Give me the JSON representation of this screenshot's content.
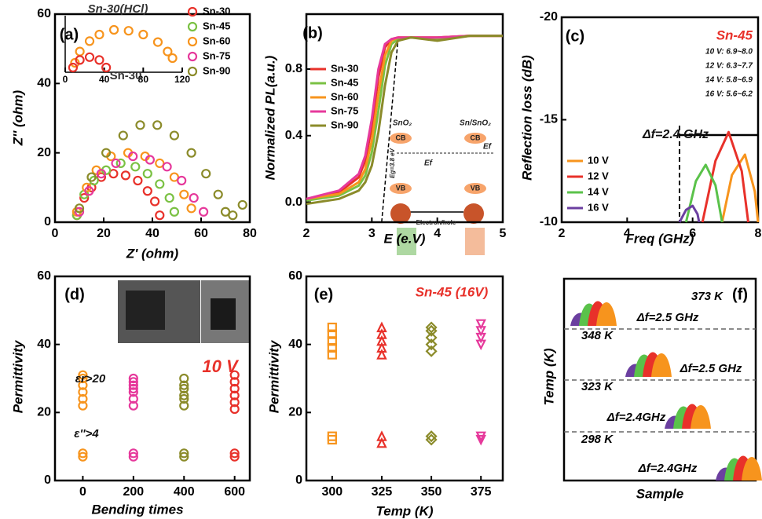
{
  "chart_data": [
    {
      "type": "scatter",
      "label": "(a)",
      "xlabel": "Z' (ohm)",
      "ylabel": "Z'' (ohm)",
      "xlim": [
        0,
        80
      ],
      "ylim": [
        0,
        60
      ],
      "xticks": [
        0,
        20,
        40,
        60,
        80
      ],
      "yticks": [
        0,
        20,
        40,
        60
      ],
      "series": [
        {
          "name": "Sn-30",
          "color": "#e8312a",
          "marker": "circle",
          "x": [
            9,
            12,
            15,
            19,
            24,
            29,
            34,
            38,
            41,
            43
          ],
          "values": [
            2,
            7,
            10,
            13,
            14,
            13.5,
            12,
            9,
            6,
            2
          ]
        },
        {
          "name": "Sn-45",
          "color": "#7ac143",
          "marker": "circle",
          "x": [
            9,
            12,
            16,
            21,
            27,
            33,
            38,
            43,
            47,
            49
          ],
          "values": [
            2,
            8,
            12,
            15,
            17,
            16,
            14,
            11,
            7,
            3
          ]
        },
        {
          "name": "Sn-60",
          "color": "#f7941d",
          "marker": "circle",
          "x": [
            9,
            13,
            17,
            23,
            30,
            37,
            43,
            49,
            53,
            56
          ],
          "values": [
            3,
            10,
            15,
            19,
            20,
            19,
            17,
            13,
            8,
            4
          ]
        },
        {
          "name": "Sn-75",
          "color": "#e6399b",
          "marker": "circle",
          "x": [
            10,
            14,
            19,
            25,
            32,
            39,
            46,
            52,
            57,
            61
          ],
          "values": [
            3,
            9,
            14,
            17,
            19,
            18,
            16,
            12,
            7,
            3
          ]
        },
        {
          "name": "Sn-90",
          "color": "#8b8b2a",
          "marker": "circle",
          "x": [
            10,
            15,
            21,
            28,
            35,
            42,
            49,
            56,
            62,
            67,
            70,
            73,
            77
          ],
          "values": [
            4,
            13,
            20,
            25,
            28,
            28,
            25,
            20,
            14,
            8,
            3,
            2,
            5
          ]
        }
      ]
    },
    {
      "type": "scatter",
      "annotations": [
        "Sn-30(HCl)",
        "Sn-30"
      ],
      "xlim": [
        0,
        120
      ],
      "ylim": [
        0,
        60
      ],
      "xticks": [
        0,
        40,
        80,
        120
      ],
      "series": [
        {
          "color": "#f7941d",
          "marker": "circle",
          "x": [
            10,
            15,
            25,
            35,
            50,
            65,
            80,
            95,
            105,
            110
          ],
          "values": [
            10,
            22,
            33,
            40,
            45,
            44,
            40,
            32,
            22,
            15
          ]
        },
        {
          "color": "#e8312a",
          "marker": "circle",
          "x": [
            8,
            15,
            25,
            35,
            42
          ],
          "values": [
            5,
            13,
            16,
            13,
            5
          ]
        }
      ]
    },
    {
      "type": "line",
      "label": "(b)",
      "xlabel": "E (e.V)",
      "ylabel": "Normalized PL(a.u.)",
      "xlim": [
        2,
        5
      ],
      "ylim": [
        -0.12,
        1.13
      ],
      "xticks": [
        2,
        3,
        4,
        5
      ],
      "yticks": [
        {
          "value": 0,
          "label": "0.0"
        },
        0.4,
        0.8
      ],
      "annotations": [
        "SnO₂",
        "Sn/SnO₂",
        "CB",
        "CB",
        "VB",
        "VB",
        "Eg=3.8 eV",
        "Ef",
        "Ef",
        "Electron/hole"
      ],
      "x": [
        2,
        2.5,
        2.8,
        2.9,
        3.0,
        3.1,
        3.2,
        3.3,
        3.4,
        3.6,
        4.0,
        4.5,
        5.0
      ],
      "series": [
        {
          "name": "Sn-30",
          "color": "#e8312a",
          "values": [
            0.02,
            0.06,
            0.15,
            0.25,
            0.45,
            0.75,
            0.93,
            0.98,
            0.99,
            0.99,
            0.99,
            1.0,
            1.0
          ]
        },
        {
          "name": "Sn-45",
          "color": "#7ac143",
          "values": [
            0.01,
            0.04,
            0.1,
            0.16,
            0.3,
            0.55,
            0.82,
            0.95,
            0.98,
            0.99,
            0.98,
            1.0,
            1.0
          ]
        },
        {
          "name": "Sn-60",
          "color": "#f7941d",
          "values": [
            0.02,
            0.05,
            0.12,
            0.2,
            0.37,
            0.65,
            0.88,
            0.97,
            0.99,
            0.99,
            0.99,
            1.0,
            1.0
          ]
        },
        {
          "name": "Sn-75",
          "color": "#e6399b",
          "values": [
            0.02,
            0.07,
            0.17,
            0.28,
            0.5,
            0.8,
            0.95,
            0.98,
            0.99,
            0.99,
            0.99,
            1.0,
            1.0
          ]
        },
        {
          "name": "Sn-90",
          "color": "#8b8b2a",
          "values": [
            -0.01,
            0.02,
            0.07,
            0.12,
            0.22,
            0.42,
            0.7,
            0.9,
            0.97,
            0.99,
            0.97,
            1.0,
            1.0
          ]
        }
      ]
    },
    {
      "type": "line",
      "label": "(c)",
      "xlabel": "Freq (GHz)",
      "ylabel": "Reflection loss (dB)",
      "xlim": [
        2,
        8
      ],
      "ylim": [
        -10,
        -20
      ],
      "xticks": [
        2,
        4,
        6,
        8
      ],
      "yticks": [
        -20,
        -15,
        -10
      ],
      "annotations": [
        "Sn-45",
        "10 V: 6.9~8.0",
        "12 V: 6.3~7.7",
        "14 V: 5.8~6.9",
        "16 V: 5.6~6.2",
        "Δf=2.4 GHz"
      ],
      "series": [
        {
          "name": "10 V",
          "color": "#f7941d",
          "x": [
            6.9,
            7.2,
            7.6,
            7.9,
            8.0
          ],
          "values": [
            -10,
            -12.3,
            -13.3,
            -11.5,
            -10
          ]
        },
        {
          "name": "12 V",
          "color": "#e8312a",
          "x": [
            6.3,
            6.7,
            7.1,
            7.5,
            7.7
          ],
          "values": [
            -10,
            -13,
            -14.4,
            -12.5,
            -10
          ]
        },
        {
          "name": "14 V",
          "color": "#5ac24a",
          "x": [
            5.8,
            6.1,
            6.4,
            6.7,
            6.9
          ],
          "values": [
            -10,
            -12,
            -12.8,
            -11.8,
            -10
          ]
        },
        {
          "name": "16 V",
          "color": "#6b3fa0",
          "x": [
            5.6,
            5.8,
            6.0,
            6.15,
            6.2
          ],
          "values": [
            -10,
            -10.6,
            -10.8,
            -10.4,
            -10
          ]
        }
      ]
    },
    {
      "type": "scatter",
      "label": "(d)",
      "xlabel": "Bending times",
      "ylabel": "Permittivity",
      "xlim": [
        -110,
        660
      ],
      "ylim": [
        0,
        60
      ],
      "xticks": [
        0,
        200,
        400,
        600
      ],
      "yticks": [
        0,
        20,
        40,
        60
      ],
      "annotations": [
        "εr>20",
        "ε''>4",
        "10 V"
      ],
      "series": [
        {
          "color": "#f7941d",
          "marker": "circle",
          "x": [
            0,
            0,
            0,
            0,
            0,
            0,
            0,
            0
          ],
          "values": [
            22,
            24,
            26,
            28,
            30,
            31,
            7,
            8
          ]
        },
        {
          "color": "#e6399b",
          "marker": "circle",
          "x": [
            200,
            200,
            200,
            200,
            200,
            200,
            200,
            200,
            200
          ],
          "values": [
            22,
            24,
            26,
            27,
            28,
            29,
            30,
            7,
            8
          ]
        },
        {
          "color": "#8b8b2a",
          "marker": "circle",
          "x": [
            400,
            400,
            400,
            400,
            400,
            400,
            400,
            400
          ],
          "values": [
            22,
            24,
            25,
            27,
            28,
            30,
            7,
            8
          ]
        },
        {
          "color": "#e8312a",
          "marker": "circle",
          "x": [
            600,
            600,
            600,
            600,
            600,
            600,
            600,
            600
          ],
          "values": [
            21,
            23,
            25,
            27,
            29,
            31,
            7,
            8
          ]
        }
      ]
    },
    {
      "type": "scatter",
      "label": "(e)",
      "xlabel": "Temp (K)",
      "ylabel": "Permittivity",
      "xlim": [
        287,
        386
      ],
      "ylim": [
        0,
        60
      ],
      "xticks": [
        300,
        325,
        350,
        375
      ],
      "yticks": [
        0,
        20,
        40,
        60
      ],
      "annotations": [
        "Sn-45 (16V)"
      ],
      "series": [
        {
          "color": "#f7941d",
          "marker": "square",
          "x": [
            300,
            300,
            300,
            300,
            300,
            300,
            300
          ],
          "values": [
            37,
            39,
            41,
            43,
            45,
            12,
            13
          ]
        },
        {
          "color": "#e8312a",
          "marker": "triangle",
          "x": [
            325,
            325,
            325,
            325,
            325,
            325,
            325
          ],
          "values": [
            37,
            39,
            41,
            43,
            45,
            11,
            13
          ]
        },
        {
          "color": "#8b8b2a",
          "marker": "diamond",
          "x": [
            350,
            350,
            350,
            350,
            350,
            350,
            350
          ],
          "values": [
            38,
            40,
            42,
            44,
            45,
            12,
            13
          ]
        },
        {
          "color": "#e6399b",
          "marker": "tri-down",
          "x": [
            375,
            375,
            375,
            375,
            375,
            375
          ],
          "values": [
            40,
            42,
            44,
            46,
            12,
            13
          ]
        }
      ]
    },
    {
      "type": "waterfall",
      "label": "(f)",
      "xlabel": "Sample",
      "ylabel": "Temp (K)",
      "rows": [
        {
          "temp": "373 K",
          "band": "Δf=2.5 GHz"
        },
        {
          "temp": "348 K",
          "band": "Δf=2.5 GHz"
        },
        {
          "temp": "323 K",
          "band": "Δf=2.4GHz"
        },
        {
          "temp": "298 K",
          "band": "Δf=2.4GHz"
        }
      ]
    }
  ]
}
